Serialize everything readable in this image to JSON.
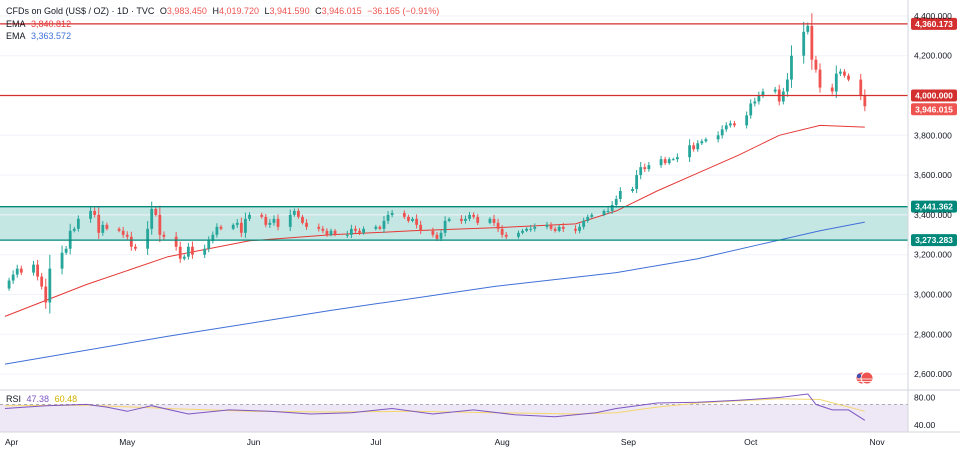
{
  "header": {
    "symbol": "CFDs on Gold (US$ / OZ) · 1D · TVC",
    "o_label": "O",
    "o_value": "3,983.450",
    "h_label": "H",
    "h_value": "4,019.720",
    "l_label": "L",
    "l_value": "3,941.590",
    "c_label": "C",
    "c_value": "3,946.015",
    "change": "−36.165 (−0.91%)",
    "ema1_label": "EMA",
    "ema1_value": "3,840.812",
    "ema2_label": "EMA",
    "ema2_value": "3,363.572",
    "rsi_label": "RSI",
    "rsi_value": "47.38",
    "rsi_ma_value": "60.48"
  },
  "colors": {
    "up": "#26a69a",
    "down": "#ef5350",
    "ema_short": "#e53935",
    "ema_long": "#3f6fd8",
    "resistance": "#d32f2f",
    "support": "#00897b",
    "zone": "#b2dfdb",
    "rsi_line": "#7e57c2",
    "rsi_ma": "#f5d76e",
    "rsi_band": "#ede7f6"
  },
  "chart_data": {
    "type": "candlestick",
    "title": "CFDs on Gold (US$ / OZ) · 1D · TVC",
    "ylim": [
      2520,
      4480
    ],
    "y_ticks": [
      "4,400.000",
      "4,200.000",
      "3,800.000",
      "3,600.000",
      "3,400.000",
      "3,200.000",
      "3,000.000",
      "2,800.000",
      "2,600.000"
    ],
    "y_tick_values": [
      4400,
      4200,
      3800,
      3600,
      3400,
      3200,
      3000,
      2800,
      2600
    ],
    "x_labels": [
      "Apr",
      "May",
      "Jun",
      "Jul",
      "Aug",
      "Sep",
      "Oct",
      "Nov"
    ],
    "x_label_days": [
      0,
      30,
      61,
      91,
      122,
      153,
      183,
      214
    ],
    "start_close": 3030,
    "candles": [
      [
        1,
        3070
      ],
      [
        2,
        3100
      ],
      [
        3,
        3130
      ],
      [
        4,
        3110
      ],
      [
        7,
        3150
      ],
      [
        8,
        3090
      ],
      [
        9,
        3040
      ],
      [
        10,
        2960
      ],
      [
        11,
        3130
      ],
      [
        14,
        3210
      ],
      [
        15,
        3230
      ],
      [
        16,
        3320
      ],
      [
        17,
        3330
      ],
      [
        18,
        3380
      ],
      [
        21,
        3420
      ],
      [
        22,
        3400
      ],
      [
        23,
        3310
      ],
      [
        24,
        3350
      ],
      [
        25,
        3330
      ],
      [
        28,
        3320
      ],
      [
        29,
        3300
      ],
      [
        30,
        3290
      ],
      [
        31,
        3240
      ],
      [
        32,
        3230
      ],
      [
        35,
        3330
      ],
      [
        36,
        3430
      ],
      [
        37,
        3400
      ],
      [
        38,
        3300
      ],
      [
        39,
        3290
      ],
      [
        42,
        3240
      ],
      [
        43,
        3180
      ],
      [
        44,
        3190
      ],
      [
        45,
        3240
      ],
      [
        46,
        3200
      ],
      [
        49,
        3230
      ],
      [
        50,
        3270
      ],
      [
        51,
        3300
      ],
      [
        52,
        3340
      ],
      [
        53,
        3330
      ],
      [
        56,
        3350
      ],
      [
        57,
        3360
      ],
      [
        58,
        3310
      ],
      [
        59,
        3380
      ],
      [
        60,
        3400
      ],
      [
        63,
        3390
      ],
      [
        64,
        3350
      ],
      [
        65,
        3360
      ],
      [
        66,
        3380
      ],
      [
        67,
        3340
      ],
      [
        70,
        3400
      ],
      [
        71,
        3420
      ],
      [
        72,
        3390
      ],
      [
        73,
        3360
      ],
      [
        74,
        3340
      ],
      [
        77,
        3330
      ],
      [
        78,
        3320
      ],
      [
        79,
        3300
      ],
      [
        80,
        3320
      ],
      [
        81,
        3300
      ],
      [
        84,
        3300
      ],
      [
        85,
        3330
      ],
      [
        86,
        3320
      ],
      [
        87,
        3310
      ],
      [
        88,
        3330
      ],
      [
        91,
        3340
      ],
      [
        92,
        3330
      ],
      [
        93,
        3370
      ],
      [
        94,
        3400
      ],
      [
        95,
        3410
      ],
      [
        98,
        3390
      ],
      [
        99,
        3370
      ],
      [
        100,
        3380
      ],
      [
        101,
        3350
      ],
      [
        102,
        3320
      ],
      [
        105,
        3300
      ],
      [
        106,
        3280
      ],
      [
        107,
        3310
      ],
      [
        108,
        3370
      ],
      [
        109,
        3380
      ],
      [
        112,
        3370
      ],
      [
        113,
        3380
      ],
      [
        114,
        3400
      ],
      [
        115,
        3390
      ],
      [
        116,
        3360
      ],
      [
        119,
        3380
      ],
      [
        120,
        3360
      ],
      [
        121,
        3330
      ],
      [
        122,
        3300
      ],
      [
        123,
        3290
      ],
      [
        126,
        3310
      ],
      [
        127,
        3320
      ],
      [
        128,
        3330
      ],
      [
        129,
        3330
      ],
      [
        130,
        3340
      ],
      [
        133,
        3350
      ],
      [
        134,
        3330
      ],
      [
        135,
        3320
      ],
      [
        136,
        3340
      ],
      [
        137,
        3330
      ],
      [
        140,
        3320
      ],
      [
        141,
        3340
      ],
      [
        142,
        3370
      ],
      [
        143,
        3390
      ],
      [
        144,
        3400
      ],
      [
        147,
        3420
      ],
      [
        148,
        3420
      ],
      [
        149,
        3450
      ],
      [
        150,
        3480
      ],
      [
        151,
        3520
      ],
      [
        154,
        3530
      ],
      [
        155,
        3600
      ],
      [
        156,
        3640
      ],
      [
        157,
        3630
      ],
      [
        158,
        3650
      ],
      [
        161,
        3680
      ],
      [
        162,
        3660
      ],
      [
        163,
        3680
      ],
      [
        164,
        3680
      ],
      [
        165,
        3690
      ],
      [
        168,
        3750
      ],
      [
        169,
        3730
      ],
      [
        170,
        3760
      ],
      [
        171,
        3770
      ],
      [
        172,
        3780
      ],
      [
        175,
        3800
      ],
      [
        176,
        3830
      ],
      [
        177,
        3850
      ],
      [
        178,
        3860
      ],
      [
        179,
        3850
      ],
      [
        182,
        3900
      ],
      [
        183,
        3960
      ],
      [
        184,
        3970
      ],
      [
        185,
        4000
      ],
      [
        186,
        4020
      ],
      [
        189,
        4030
      ],
      [
        190,
        3970
      ],
      [
        191,
        4020
      ],
      [
        192,
        4080
      ],
      [
        193,
        4200
      ],
      [
        196,
        4320
      ],
      [
        197,
        4350
      ],
      [
        198,
        4180
      ],
      [
        199,
        4130
      ],
      [
        200,
        4040
      ],
      [
        203,
        4020
      ],
      [
        204,
        4110
      ],
      [
        205,
        4120
      ],
      [
        206,
        4100
      ],
      [
        207,
        4080
      ],
      [
        210,
        4000
      ],
      [
        211,
        3946
      ]
    ],
    "ema_short": [
      [
        0,
        2890
      ],
      [
        20,
        3050
      ],
      [
        40,
        3190
      ],
      [
        60,
        3270
      ],
      [
        80,
        3300
      ],
      [
        100,
        3320
      ],
      [
        120,
        3335
      ],
      [
        140,
        3355
      ],
      [
        150,
        3420
      ],
      [
        160,
        3520
      ],
      [
        170,
        3610
      ],
      [
        180,
        3700
      ],
      [
        190,
        3800
      ],
      [
        200,
        3850
      ],
      [
        211,
        3841
      ]
    ],
    "ema_long": [
      [
        0,
        2650
      ],
      [
        40,
        2790
      ],
      [
        80,
        2920
      ],
      [
        120,
        3040
      ],
      [
        150,
        3110
      ],
      [
        170,
        3180
      ],
      [
        185,
        3250
      ],
      [
        200,
        3320
      ],
      [
        211,
        3364
      ]
    ],
    "levels": [
      {
        "label": "4,360.173",
        "value": 4360.173,
        "kind": "resistance"
      },
      {
        "label": "4,000.000",
        "value": 4000.0,
        "kind": "resistance"
      },
      {
        "label": "3,441.362",
        "value": 3441.362,
        "kind": "support"
      },
      {
        "label": "3,273.283",
        "value": 3273.283,
        "kind": "support"
      }
    ],
    "last_price_label": "3,946.015",
    "last_price": 3946.015,
    "rsi": {
      "ylim": [
        30,
        85
      ],
      "ticks": [
        "80.00",
        "40.00"
      ],
      "tick_values": [
        80,
        40
      ],
      "overbought": 70,
      "oversold": 30,
      "series": [
        [
          0,
          64
        ],
        [
          10,
          68
        ],
        [
          20,
          70
        ],
        [
          25,
          66
        ],
        [
          30,
          60
        ],
        [
          36,
          68
        ],
        [
          45,
          56
        ],
        [
          55,
          62
        ],
        [
          65,
          60
        ],
        [
          75,
          56
        ],
        [
          85,
          58
        ],
        [
          95,
          64
        ],
        [
          105,
          56
        ],
        [
          115,
          62
        ],
        [
          125,
          55
        ],
        [
          135,
          52
        ],
        [
          145,
          58
        ],
        [
          150,
          64
        ],
        [
          160,
          72
        ],
        [
          170,
          73
        ],
        [
          180,
          76
        ],
        [
          190,
          80
        ],
        [
          197,
          85
        ],
        [
          199,
          70
        ],
        [
          203,
          62
        ],
        [
          207,
          62
        ],
        [
          211,
          47
        ]
      ],
      "ma": [
        [
          0,
          68
        ],
        [
          20,
          69
        ],
        [
          40,
          64
        ],
        [
          60,
          60
        ],
        [
          80,
          59
        ],
        [
          100,
          60
        ],
        [
          120,
          58
        ],
        [
          140,
          56
        ],
        [
          150,
          58
        ],
        [
          160,
          66
        ],
        [
          170,
          72
        ],
        [
          180,
          75
        ],
        [
          190,
          78
        ],
        [
          200,
          77
        ],
        [
          211,
          60
        ]
      ]
    }
  }
}
